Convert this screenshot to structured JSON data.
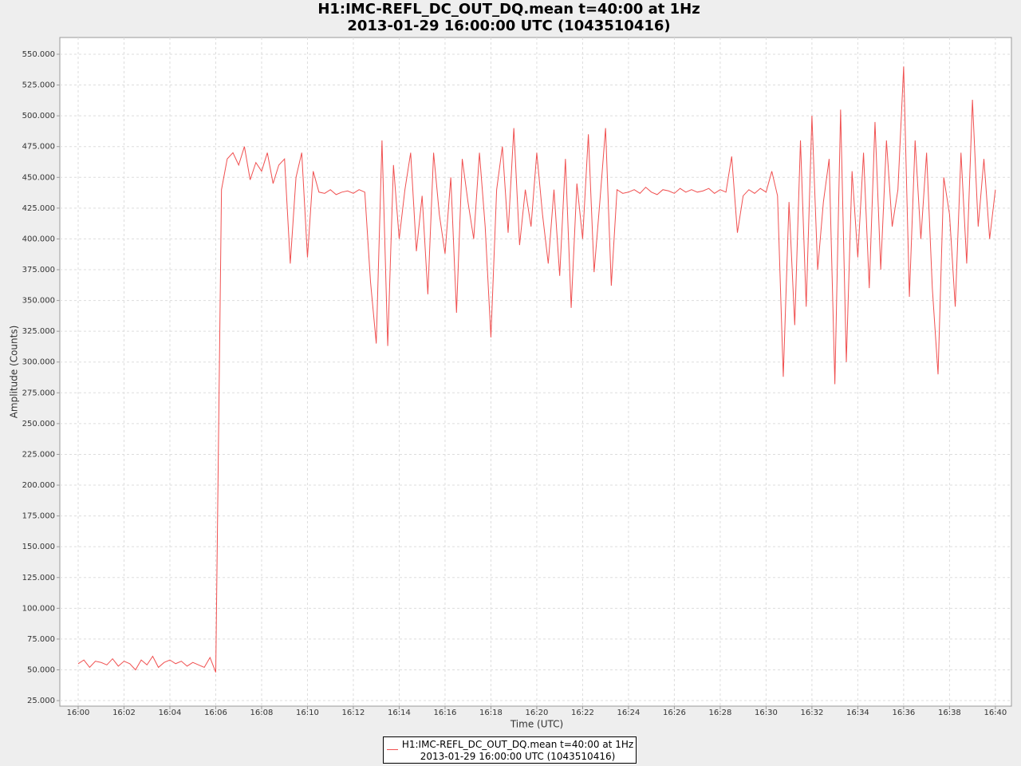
{
  "chart_data": {
    "type": "line",
    "title": "H1:IMC-REFL_DC_OUT_DQ.mean t=40:00 at 1Hz\n2013-01-29 16:00:00 UTC (1043510416)",
    "x_label": "Time (UTC)",
    "y_label": "Amplitude (Counts)",
    "xlim": [
      -0.8,
      40.7
    ],
    "ylim": [
      20.5,
      563.6
    ],
    "grid": true,
    "xticks": [
      {
        "value": 0,
        "label": "16:00"
      },
      {
        "value": 2,
        "label": "16:02"
      },
      {
        "value": 4,
        "label": "16:04"
      },
      {
        "value": 6,
        "label": "16:06"
      },
      {
        "value": 8,
        "label": "16:08"
      },
      {
        "value": 10,
        "label": "16:10"
      },
      {
        "value": 12,
        "label": "16:12"
      },
      {
        "value": 14,
        "label": "16:14"
      },
      {
        "value": 16,
        "label": "16:16"
      },
      {
        "value": 18,
        "label": "16:18"
      },
      {
        "value": 20,
        "label": "16:20"
      },
      {
        "value": 22,
        "label": "16:22"
      },
      {
        "value": 24,
        "label": "16:24"
      },
      {
        "value": 26,
        "label": "16:26"
      },
      {
        "value": 28,
        "label": "16:28"
      },
      {
        "value": 30,
        "label": "16:30"
      },
      {
        "value": 32,
        "label": "16:32"
      },
      {
        "value": 34,
        "label": "16:34"
      },
      {
        "value": 36,
        "label": "16:36"
      },
      {
        "value": 38,
        "label": "16:38"
      },
      {
        "value": 40,
        "label": "16:40"
      }
    ],
    "yticks": [
      {
        "value": 25,
        "label": "25.000"
      },
      {
        "value": 50,
        "label": "50.000"
      },
      {
        "value": 75,
        "label": "75.000"
      },
      {
        "value": 100,
        "label": "100.000"
      },
      {
        "value": 125,
        "label": "125.000"
      },
      {
        "value": 150,
        "label": "150.000"
      },
      {
        "value": 175,
        "label": "175.000"
      },
      {
        "value": 200,
        "label": "200.000"
      },
      {
        "value": 225,
        "label": "225.000"
      },
      {
        "value": 250,
        "label": "250.000"
      },
      {
        "value": 275,
        "label": "275.000"
      },
      {
        "value": 300,
        "label": "300.000"
      },
      {
        "value": 325,
        "label": "325.000"
      },
      {
        "value": 350,
        "label": "350.000"
      },
      {
        "value": 375,
        "label": "375.000"
      },
      {
        "value": 400,
        "label": "400.000"
      },
      {
        "value": 425,
        "label": "425.000"
      },
      {
        "value": 450,
        "label": "450.000"
      },
      {
        "value": 475,
        "label": "475.000"
      },
      {
        "value": 500,
        "label": "500.000"
      },
      {
        "value": 525,
        "label": "525.000"
      },
      {
        "value": 550,
        "label": "550.000"
      }
    ],
    "x": [
      0,
      0.25,
      0.5,
      0.75,
      1,
      1.25,
      1.5,
      1.75,
      2,
      2.25,
      2.5,
      2.75,
      3,
      3.25,
      3.5,
      3.75,
      4,
      4.25,
      4.5,
      4.75,
      5,
      5.25,
      5.5,
      5.75,
      6,
      6.25,
      6.5,
      6.75,
      7,
      7.25,
      7.5,
      7.75,
      8,
      8.25,
      8.5,
      8.75,
      9,
      9.25,
      9.5,
      9.75,
      10,
      10.25,
      10.5,
      10.75,
      11,
      11.25,
      11.5,
      11.75,
      12,
      12.25,
      12.5,
      12.75,
      13,
      13.25,
      13.5,
      13.75,
      14,
      14.25,
      14.5,
      14.75,
      15,
      15.25,
      15.5,
      15.75,
      16,
      16.25,
      16.5,
      16.75,
      17,
      17.25,
      17.5,
      17.75,
      18,
      18.25,
      18.5,
      18.75,
      19,
      19.25,
      19.5,
      19.75,
      20,
      20.25,
      20.5,
      20.75,
      21,
      21.25,
      21.5,
      21.75,
      22,
      22.25,
      22.5,
      22.75,
      23,
      23.25,
      23.5,
      23.75,
      24,
      24.25,
      24.5,
      24.75,
      25,
      25.25,
      25.5,
      25.75,
      26,
      26.25,
      26.5,
      26.75,
      27,
      27.25,
      27.5,
      27.75,
      28,
      28.25,
      28.5,
      28.75,
      29,
      29.25,
      29.5,
      29.75,
      30,
      30.25,
      30.5,
      30.75,
      31,
      31.25,
      31.5,
      31.75,
      32,
      32.25,
      32.5,
      32.75,
      33,
      33.25,
      33.5,
      33.75,
      34,
      34.25,
      34.5,
      34.75,
      35,
      35.25,
      35.5,
      35.75,
      36,
      36.25,
      36.5,
      36.75,
      37,
      37.25,
      37.5,
      37.75,
      38,
      38.25,
      38.5,
      38.75,
      39,
      39.25,
      39.5,
      39.75,
      40
    ],
    "series": [
      {
        "name": "H1:IMC-REFL_DC_OUT_DQ.mean t=40:00 at 1Hz\n2013-01-29 16:00:00 UTC (1043510416)",
        "color": "#f05050",
        "values": [
          55,
          58,
          52,
          57,
          56,
          54,
          59,
          53,
          57,
          55,
          50,
          58,
          54,
          61,
          52,
          56,
          58,
          55,
          57,
          53,
          56,
          54,
          52,
          60,
          48,
          440,
          465,
          470,
          460,
          475,
          448,
          462,
          455,
          470,
          445,
          460,
          465,
          380,
          450,
          470,
          385,
          455,
          438,
          437,
          440,
          436,
          438,
          439,
          437,
          440,
          438,
          365,
          315,
          480,
          313,
          460,
          400,
          440,
          470,
          390,
          435,
          355,
          470,
          420,
          388,
          450,
          340,
          465,
          430,
          400,
          470,
          410,
          320,
          440,
          475,
          405,
          490,
          395,
          440,
          410,
          470,
          420,
          380,
          440,
          370,
          465,
          344,
          445,
          400,
          485,
          373,
          430,
          490,
          362,
          440,
          437,
          438,
          440,
          437,
          442,
          438,
          436,
          440,
          439,
          437,
          441,
          438,
          440,
          438,
          439,
          441,
          437,
          440,
          438,
          467,
          405,
          435,
          440,
          437,
          441,
          438,
          455,
          435,
          288,
          430,
          330,
          480,
          345,
          500,
          375,
          430,
          465,
          282,
          505,
          300,
          455,
          385,
          470,
          360,
          495,
          375,
          480,
          410,
          440,
          540,
          353,
          480,
          400,
          470,
          360,
          290,
          450,
          420,
          345,
          470,
          380,
          513,
          410,
          465,
          400,
          440
        ]
      }
    ]
  }
}
